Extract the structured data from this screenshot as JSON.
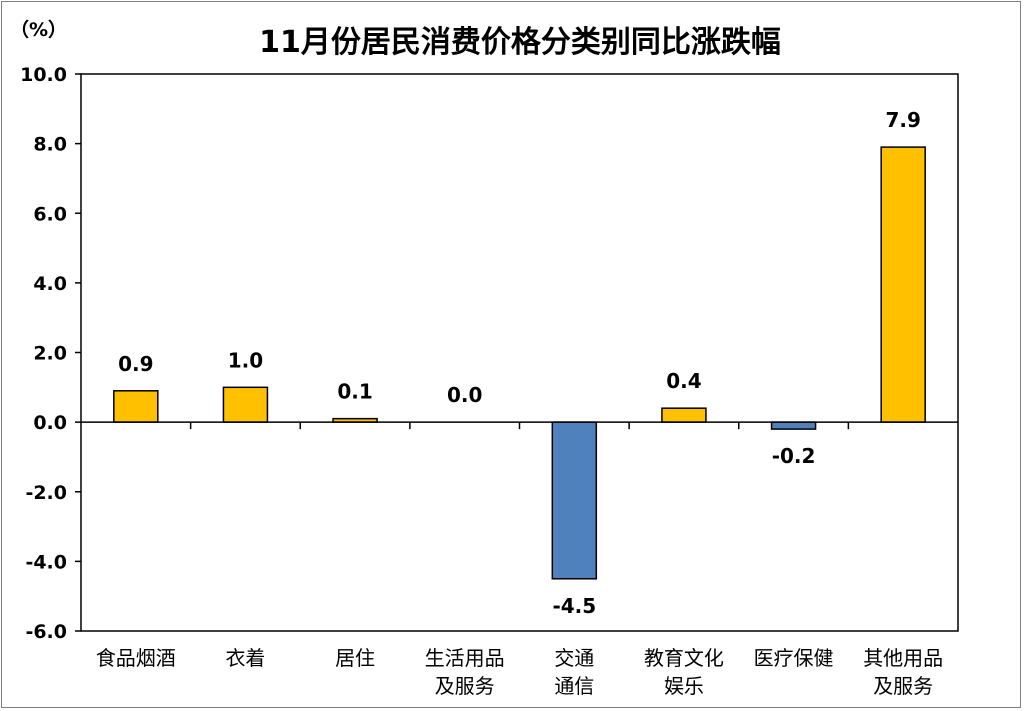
{
  "chart_data": {
    "type": "bar",
    "title": "11月份居民消费价格分类别同比涨跌幅",
    "unit_label": "（%）",
    "categories": [
      [
        "食品烟酒"
      ],
      [
        "衣着"
      ],
      [
        "居住"
      ],
      [
        "生活用品",
        "及服务"
      ],
      [
        "交通",
        "通信"
      ],
      [
        "教育文化",
        "娱乐"
      ],
      [
        "医疗保健"
      ],
      [
        "其他用品",
        "及服务"
      ]
    ],
    "values": [
      0.9,
      1.0,
      0.1,
      0.0,
      -4.5,
      0.4,
      -0.2,
      7.9
    ],
    "value_labels": [
      "0.9",
      "1.0",
      "0.1",
      "0.0",
      "-4.5",
      "0.4",
      "-0.2",
      "7.9"
    ],
    "ylim": [
      -6.0,
      10.0
    ],
    "yticks": [
      "10.0",
      "8.0",
      "6.0",
      "4.0",
      "2.0",
      "0.0",
      "-2.0",
      "-4.0",
      "-6.0"
    ],
    "ytick_values": [
      10,
      8,
      6,
      4,
      2,
      0,
      -2,
      -4,
      -6
    ],
    "grid": false,
    "legend": "none",
    "colors": {
      "positive": "#FFC000",
      "negative": "#4F81BD",
      "outline": "#000000"
    }
  }
}
